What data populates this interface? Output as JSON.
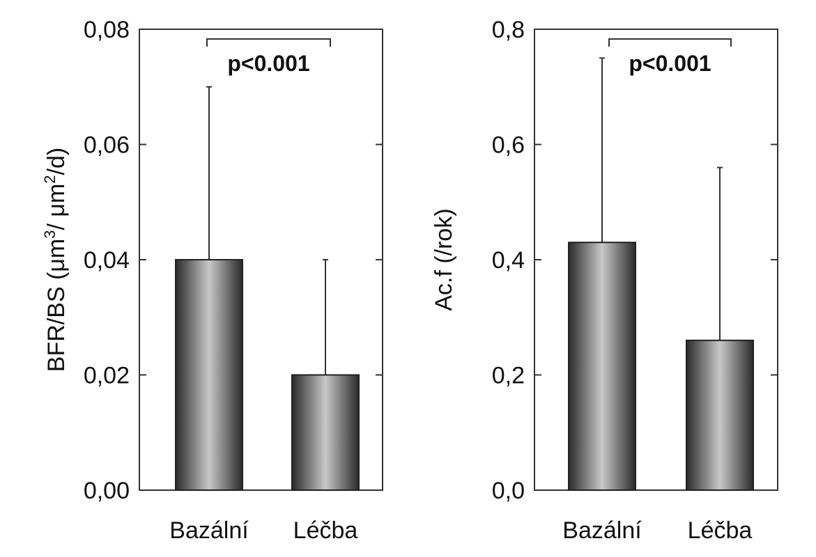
{
  "colors": {
    "bar_dark": "#2a2a2a",
    "bar_light": "#c8c8c8",
    "axis": "#333333"
  },
  "chart_data": [
    {
      "type": "bar",
      "title": "",
      "xlabel": "",
      "ylabel_main": "BFR/BS (μm",
      "ylabel_sup1": "3",
      "ylabel_mid": "/ μm",
      "ylabel_sup2": "2",
      "ylabel_end": "/d)",
      "categories": [
        "Bazální",
        "Léčba"
      ],
      "values": [
        0.04,
        0.02
      ],
      "error_upper": [
        0.07,
        0.04
      ],
      "ylim": [
        0,
        0.08
      ],
      "yticks": [
        0,
        0.02,
        0.04,
        0.06,
        0.08
      ],
      "ytick_labels": [
        "0,00",
        "0,02",
        "0,04",
        "0,06",
        "0,08"
      ],
      "annotation": "p<0.001",
      "grid": false
    },
    {
      "type": "bar",
      "title": "",
      "xlabel": "",
      "ylabel": "Ac.f (/rok)",
      "categories": [
        "Bazální",
        "Léčba"
      ],
      "values": [
        0.43,
        0.26
      ],
      "error_upper": [
        0.75,
        0.56
      ],
      "ylim": [
        0,
        0.8
      ],
      "yticks": [
        0,
        0.2,
        0.4,
        0.6,
        0.8
      ],
      "ytick_labels": [
        "0,0",
        "0,2",
        "0,4",
        "0,6",
        "0,8"
      ],
      "annotation": "p<0.001",
      "grid": false
    }
  ]
}
